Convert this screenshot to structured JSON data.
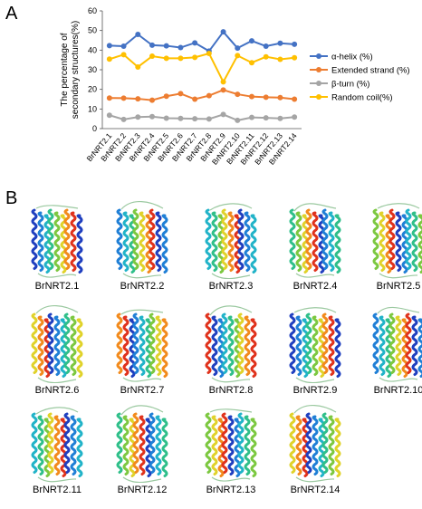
{
  "panel_a_label": "A",
  "panel_b_label": "B",
  "chart_data": {
    "type": "line",
    "title": "",
    "xlabel": "",
    "ylabel": "The percentage of\nsecondary structures(%)",
    "ylim": [
      0,
      60
    ],
    "yticks": [
      0,
      10,
      20,
      30,
      40,
      50,
      60
    ],
    "grid": false,
    "legend_position": "right",
    "categories": [
      "BrNRT2.1",
      "BrNRT2.2",
      "BrNRT2.3",
      "BrNRT2.4",
      "BrNRT2.5",
      "BrNRT2.6",
      "BrNRT2.7",
      "BrNRT2.8",
      "BrNRT2.9",
      "BrNRT2.10",
      "BrNRT2.11",
      "BrNRT2.12",
      "BrNRT2.13",
      "BrNRT2.14"
    ],
    "series": [
      {
        "name": "α-helix (%)",
        "color": "#4472C4",
        "values": [
          42.3,
          42.0,
          48.0,
          42.5,
          42.2,
          41.3,
          43.7,
          39.5,
          49.3,
          41.0,
          44.7,
          42.0,
          43.5,
          43.0
        ]
      },
      {
        "name": "Extended strand (%)",
        "color": "#ED7D31",
        "values": [
          15.6,
          15.5,
          15.2,
          14.5,
          16.5,
          17.8,
          15.0,
          16.8,
          19.7,
          17.5,
          16.3,
          16.0,
          15.8,
          15.0
        ]
      },
      {
        "name": "β-turn (%)",
        "color": "#A5A5A5",
        "values": [
          6.8,
          4.7,
          5.9,
          6.1,
          5.3,
          5.2,
          5.0,
          4.9,
          7.2,
          4.2,
          5.7,
          5.5,
          5.2,
          5.9
        ]
      },
      {
        "name": "Random coil(%)",
        "color": "#FFC000",
        "values": [
          35.4,
          37.7,
          31.4,
          36.9,
          35.8,
          35.8,
          36.3,
          38.3,
          23.8,
          37.2,
          33.6,
          36.6,
          35.3,
          36.1
        ]
      }
    ]
  },
  "structures": [
    {
      "name": "BrNRT2.1"
    },
    {
      "name": "BrNRT2.2"
    },
    {
      "name": "BrNRT2.3"
    },
    {
      "name": "BrNRT2.4"
    },
    {
      "name": "BrNRT2.5"
    },
    {
      "name": "BrNRT2.6"
    },
    {
      "name": "BrNRT2.7"
    },
    {
      "name": "BrNRT2.8"
    },
    {
      "name": "BrNRT2.9"
    },
    {
      "name": "BrNRT2.10"
    },
    {
      "name": "BrNRT2.11"
    },
    {
      "name": "BrNRT2.12"
    },
    {
      "name": "BrNRT2.13"
    },
    {
      "name": "BrNRT2.14"
    }
  ]
}
